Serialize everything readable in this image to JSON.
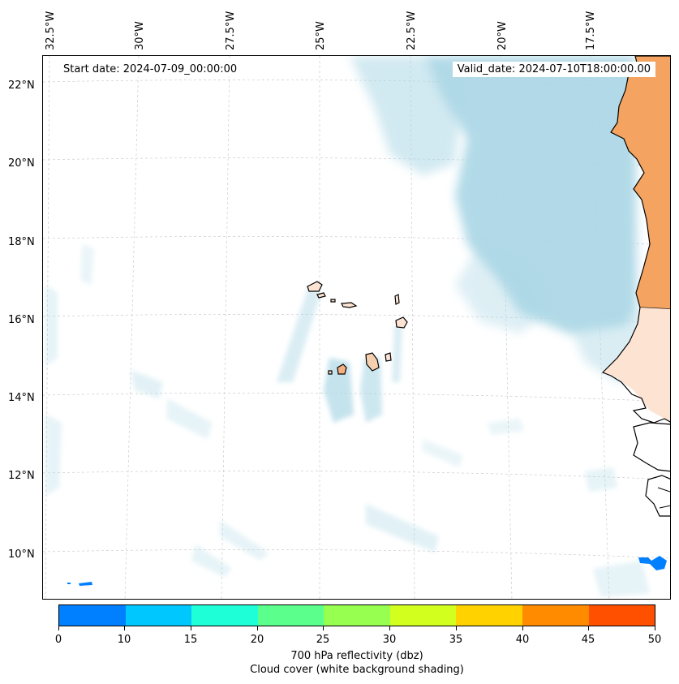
{
  "map": {
    "start_date": "Start date: 2024-07-09_00:00:00",
    "valid_date": "Valid_date: 2024-07-10T18:00:00.00",
    "lon_labels": [
      "32.5°W",
      "30°W",
      "27.5°W",
      "25°W",
      "22.5°W",
      "20°W",
      "17.5°W"
    ],
    "lat_labels": [
      "22°N",
      "20°N",
      "18°N",
      "16°N",
      "14°N",
      "12°N",
      "10°N"
    ]
  },
  "colorbar": {
    "ticks": [
      "0",
      "10",
      "15",
      "20",
      "25",
      "30",
      "35",
      "40",
      "45",
      "50"
    ],
    "colors": [
      "#0080ff",
      "#00c8ff",
      "#1effd8",
      "#5aff8c",
      "#96ff50",
      "#d2ff1e",
      "#ffd200",
      "#ff8c00",
      "#ff5000"
    ],
    "title": "700 hPa reflectivity (dbz)",
    "subtitle": "Cloud cover (white background shading)"
  },
  "colors": {
    "cloud": "#add8e6",
    "land": "#f4a460",
    "grid": "#cccccc"
  }
}
